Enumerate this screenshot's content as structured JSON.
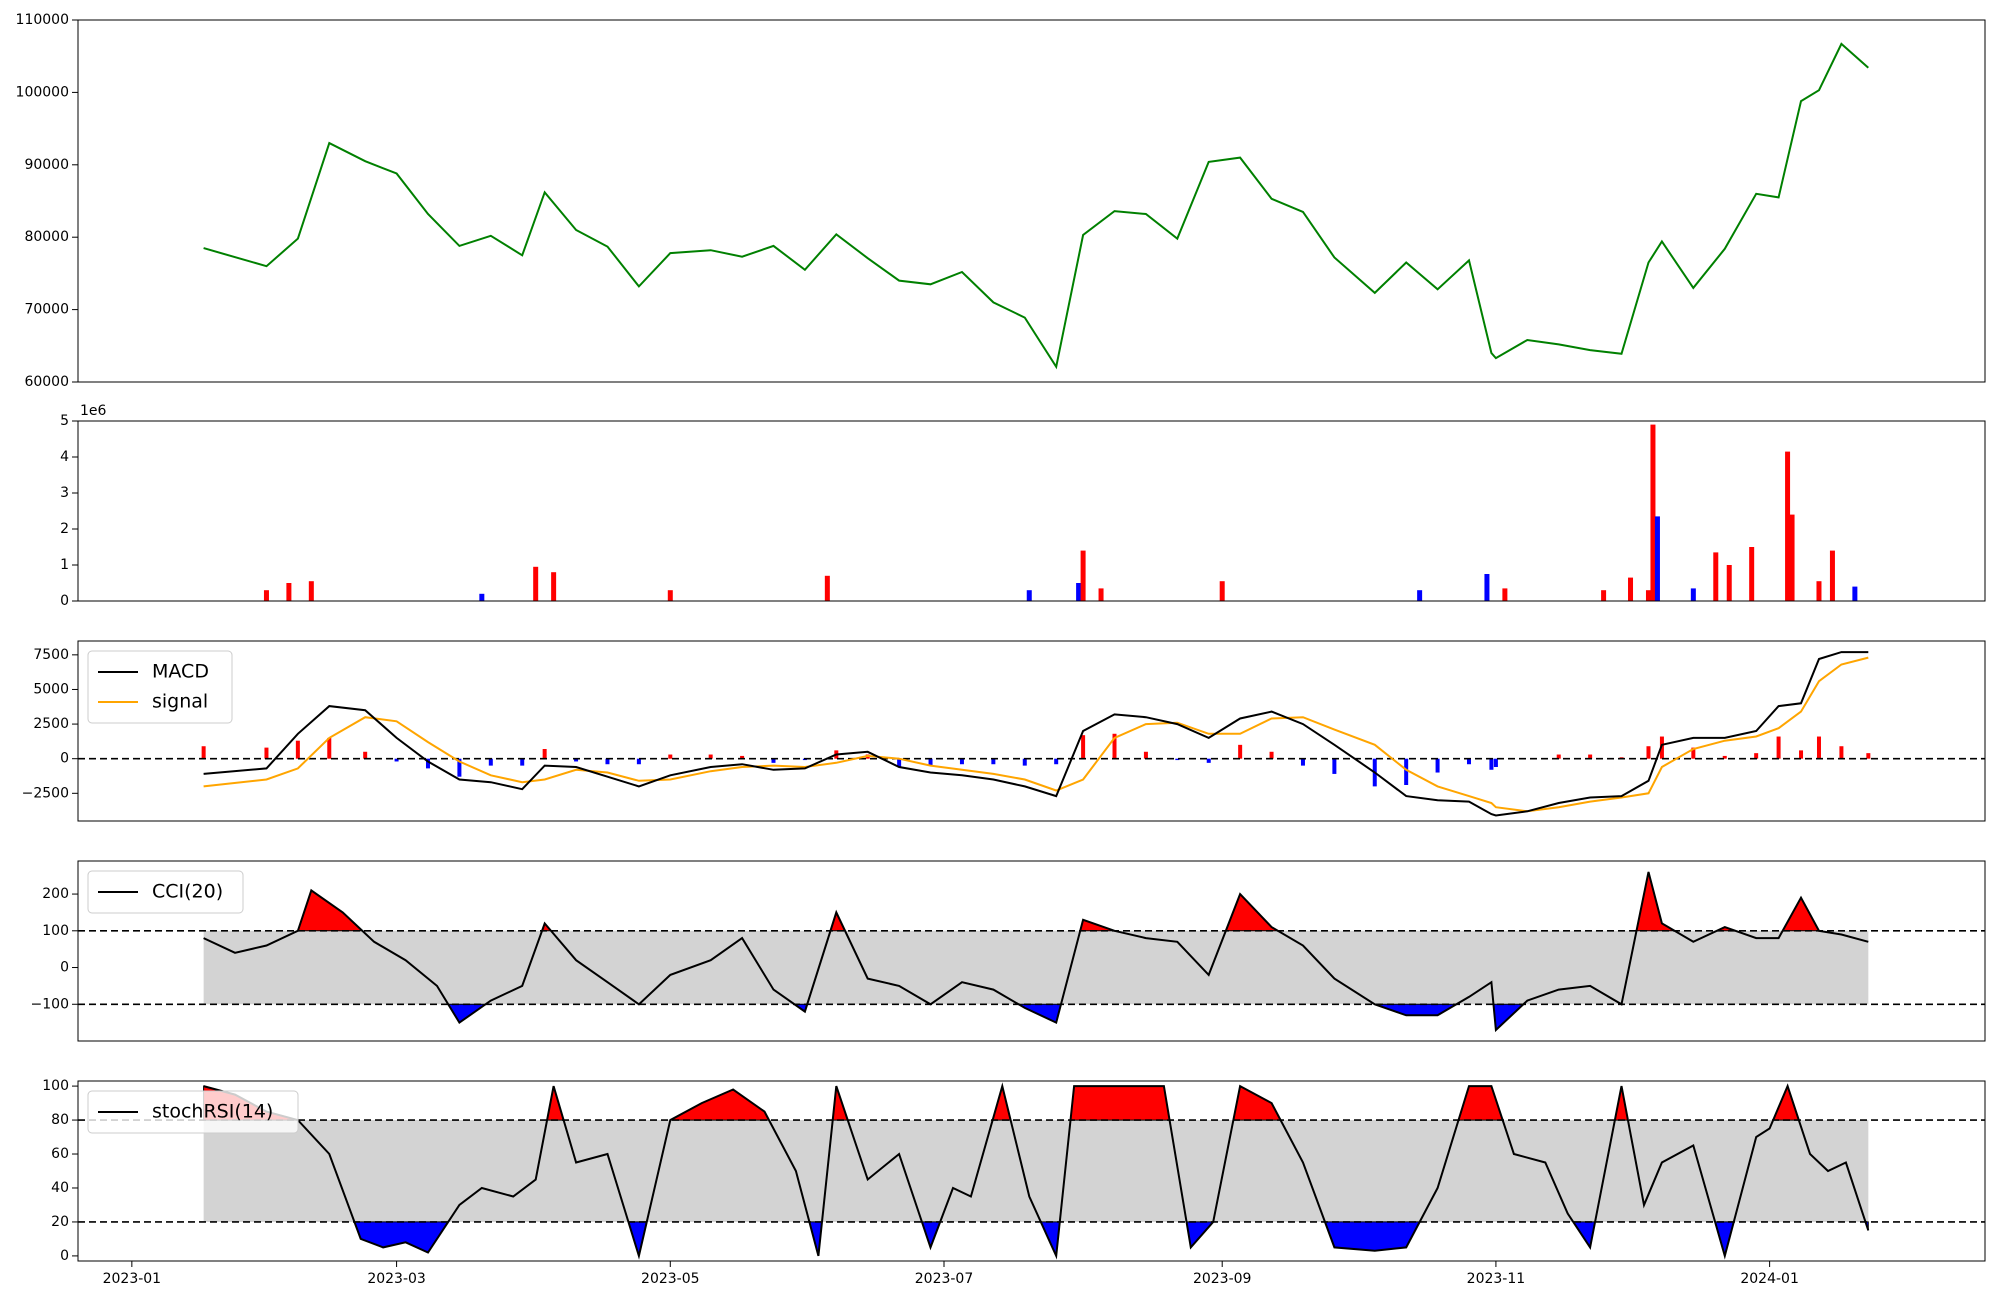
{
  "chart_data": [
    {
      "type": "line",
      "panel": "price",
      "ylim": [
        60000,
        110000
      ],
      "yticks": [
        "60000",
        "70000",
        "80000",
        "90000",
        "100000",
        "110000"
      ],
      "x": [
        "2023-01-17",
        "2023-01-31",
        "2023-02-07",
        "2023-02-14",
        "2023-02-22",
        "2023-03-01",
        "2023-03-08",
        "2023-03-15",
        "2023-03-22",
        "2023-03-29",
        "2023-04-03",
        "2023-04-10",
        "2023-04-17",
        "2023-04-24",
        "2023-05-01",
        "2023-05-10",
        "2023-05-17",
        "2023-05-24",
        "2023-05-31",
        "2023-06-07",
        "2023-06-14",
        "2023-06-21",
        "2023-06-28",
        "2023-07-05",
        "2023-07-12",
        "2023-07-19",
        "2023-07-26",
        "2023-08-01",
        "2023-08-08",
        "2023-08-15",
        "2023-08-22",
        "2023-08-29",
        "2023-09-05",
        "2023-09-12",
        "2023-09-19",
        "2023-09-26",
        "2023-10-05",
        "2023-10-12",
        "2023-10-19",
        "2023-10-26",
        "2023-10-31",
        "2023-11-01",
        "2023-11-08",
        "2023-11-15",
        "2023-11-22",
        "2023-11-29",
        "2023-12-05",
        "2023-12-08",
        "2023-12-15",
        "2023-12-22",
        "2023-12-29",
        "2024-01-03",
        "2024-01-08",
        "2024-01-12",
        "2024-01-17",
        "2024-01-23"
      ],
      "y": [
        78500,
        76000,
        79800,
        93000,
        90500,
        88800,
        83200,
        78800,
        80200,
        77500,
        86200,
        81000,
        78700,
        73200,
        77800,
        78200,
        77300,
        78800,
        75500,
        80400,
        77100,
        74000,
        73500,
        75200,
        71000,
        68900,
        62100,
        80300,
        83600,
        83200,
        79800,
        90400,
        91000,
        85300,
        83500,
        77200,
        72300,
        76500,
        72800,
        76800,
        64000,
        63300,
        65800,
        65200,
        64400,
        63900,
        76500,
        79400,
        73000,
        78400,
        86000,
        85500,
        98800,
        100300,
        106700,
        103400
      ]
    },
    {
      "type": "bar",
      "panel": "volume",
      "ylim": [
        0,
        5000000
      ],
      "yticks": [
        "0",
        "1",
        "2",
        "3",
        "4",
        "5"
      ],
      "offset_label": "1e6",
      "colors": {
        "up": "#ff0000",
        "down": "#0000ff"
      },
      "x": [
        "2023-01-31",
        "2023-02-05",
        "2023-02-10",
        "2023-03-20",
        "2023-04-01",
        "2023-04-05",
        "2023-05-01",
        "2023-06-05",
        "2023-07-20",
        "2023-07-31",
        "2023-08-01",
        "2023-08-05",
        "2023-09-01",
        "2023-10-15",
        "2023-10-30",
        "2023-11-03",
        "2023-11-25",
        "2023-12-01",
        "2023-12-05",
        "2023-12-06",
        "2023-12-07",
        "2023-12-15",
        "2023-12-20",
        "2023-12-23",
        "2023-12-28",
        "2024-01-05",
        "2024-01-06",
        "2024-01-12",
        "2024-01-15",
        "2024-01-20"
      ],
      "values": [
        300000,
        500000,
        550000,
        200000,
        950000,
        800000,
        300000,
        700000,
        300000,
        500000,
        1400000,
        350000,
        550000,
        300000,
        750000,
        350000,
        300000,
        650000,
        300000,
        4900000,
        2350000,
        350000,
        1350000,
        1000000,
        1500000,
        4150000,
        2400000,
        550000,
        1400000,
        400000
      ],
      "up": [
        true,
        true,
        true,
        false,
        true,
        true,
        true,
        true,
        false,
        false,
        true,
        true,
        true,
        false,
        false,
        true,
        true,
        true,
        true,
        true,
        false,
        false,
        true,
        true,
        true,
        true,
        true,
        true,
        true,
        false
      ]
    },
    {
      "type": "line",
      "panel": "macd",
      "ylim": [
        -4500,
        8500
      ],
      "yticks": [
        "−2500",
        "0",
        "2500",
        "5000",
        "7500"
      ],
      "legend": [
        "MACD",
        "signal"
      ],
      "colors": {
        "macd": "#000000",
        "signal": "#ffa500",
        "hist_pos": "#ff0000",
        "hist_neg": "#0000ff"
      },
      "x": [
        "2023-01-17",
        "2023-01-31",
        "2023-02-07",
        "2023-02-14",
        "2023-02-22",
        "2023-03-01",
        "2023-03-08",
        "2023-03-15",
        "2023-03-22",
        "2023-03-29",
        "2023-04-03",
        "2023-04-10",
        "2023-04-17",
        "2023-04-24",
        "2023-05-01",
        "2023-05-10",
        "2023-05-17",
        "2023-05-24",
        "2023-05-31",
        "2023-06-07",
        "2023-06-14",
        "2023-06-21",
        "2023-06-28",
        "2023-07-05",
        "2023-07-12",
        "2023-07-19",
        "2023-07-26",
        "2023-08-01",
        "2023-08-08",
        "2023-08-15",
        "2023-08-22",
        "2023-08-29",
        "2023-09-05",
        "2023-09-12",
        "2023-09-19",
        "2023-09-26",
        "2023-10-05",
        "2023-10-12",
        "2023-10-19",
        "2023-10-26",
        "2023-10-31",
        "2023-11-01",
        "2023-11-08",
        "2023-11-15",
        "2023-11-22",
        "2023-11-29",
        "2023-12-05",
        "2023-12-08",
        "2023-12-15",
        "2023-12-22",
        "2023-12-29",
        "2024-01-03",
        "2024-01-08",
        "2024-01-12",
        "2024-01-17",
        "2024-01-23"
      ],
      "macd": [
        -1100,
        -700,
        1800,
        3800,
        3500,
        1500,
        -200,
        -1500,
        -1700,
        -2200,
        -500,
        -600,
        -1300,
        -2000,
        -1200,
        -600,
        -400,
        -800,
        -700,
        300,
        500,
        -600,
        -1000,
        -1200,
        -1500,
        -2000,
        -2700,
        2000,
        3200,
        3000,
        2500,
        1500,
        2900,
        3400,
        2500,
        1000,
        -1000,
        -2700,
        -3000,
        -3100,
        -4000,
        -4100,
        -3800,
        -3200,
        -2800,
        -2700,
        -1600,
        1000,
        1500,
        1500,
        2000,
        3800,
        4000,
        7200,
        7700,
        7700
      ],
      "signal": [
        -2000,
        -1500,
        -700,
        1500,
        3000,
        2700,
        1200,
        -200,
        -1200,
        -1700,
        -1500,
        -800,
        -1000,
        -1600,
        -1500,
        -900,
        -600,
        -500,
        -600,
        -300,
        200,
        0,
        -500,
        -800,
        -1100,
        -1500,
        -2300,
        -1500,
        1500,
        2500,
        2600,
        1800,
        1800,
        2900,
        3000,
        2100,
        1000,
        -800,
        -2000,
        -2700,
        -3200,
        -3500,
        -3800,
        -3500,
        -3100,
        -2800,
        -2500,
        -600,
        700,
        1300,
        1600,
        2200,
        3400,
        5600,
        6800,
        7300
      ],
      "hist": [
        900,
        800,
        1300,
        1500,
        500,
        -200,
        -700,
        -1300,
        -500,
        -500,
        700,
        -200,
        -400,
        -400,
        300,
        300,
        200,
        -300,
        -100,
        600,
        300,
        -600,
        -500,
        -400,
        -400,
        -500,
        -400,
        1700,
        1800,
        500,
        -100,
        -300,
        1000,
        500,
        -500,
        -1100,
        -2000,
        -1900,
        -1000,
        -400,
        -800,
        -600,
        0,
        300,
        300,
        100,
        900,
        1600,
        800,
        200,
        400,
        1600,
        600,
        1600,
        900,
        400
      ]
    },
    {
      "type": "line",
      "panel": "cci",
      "ylim": [
        -200,
        290
      ],
      "yticks": [
        "−100",
        "0",
        "100",
        "200"
      ],
      "legend": [
        "CCI(20)"
      ],
      "thresholds": [
        100,
        -100
      ],
      "colors": {
        "line": "#000000",
        "over": "#ff0000",
        "under": "#0000ff",
        "band": "#d3d3d3"
      },
      "x": [
        "2023-01-17",
        "2023-01-24",
        "2023-01-31",
        "2023-02-07",
        "2023-02-10",
        "2023-02-17",
        "2023-02-24",
        "2023-03-03",
        "2023-03-10",
        "2023-03-15",
        "2023-03-22",
        "2023-03-29",
        "2023-04-03",
        "2023-04-10",
        "2023-04-17",
        "2023-04-24",
        "2023-05-01",
        "2023-05-10",
        "2023-05-17",
        "2023-05-24",
        "2023-05-31",
        "2023-06-07",
        "2023-06-14",
        "2023-06-21",
        "2023-06-28",
        "2023-07-05",
        "2023-07-12",
        "2023-07-19",
        "2023-07-26",
        "2023-08-01",
        "2023-08-08",
        "2023-08-15",
        "2023-08-22",
        "2023-08-29",
        "2023-09-05",
        "2023-09-12",
        "2023-09-19",
        "2023-09-26",
        "2023-10-05",
        "2023-10-12",
        "2023-10-19",
        "2023-10-26",
        "2023-10-31",
        "2023-11-01",
        "2023-11-08",
        "2023-11-15",
        "2023-11-22",
        "2023-11-29",
        "2023-12-05",
        "2023-12-08",
        "2023-12-15",
        "2023-12-22",
        "2023-12-29",
        "2024-01-03",
        "2024-01-08",
        "2024-01-12",
        "2024-01-17",
        "2024-01-23"
      ],
      "values": [
        80,
        40,
        60,
        100,
        210,
        150,
        70,
        20,
        -50,
        -150,
        -90,
        -50,
        120,
        20,
        -40,
        -100,
        -20,
        20,
        80,
        -60,
        -120,
        150,
        -30,
        -50,
        -100,
        -40,
        -60,
        -110,
        -150,
        130,
        100,
        80,
        70,
        -20,
        200,
        110,
        60,
        -30,
        -100,
        -130,
        -130,
        -80,
        -40,
        -170,
        -90,
        -60,
        -50,
        -100,
        260,
        120,
        70,
        110,
        80,
        80,
        190,
        100,
        90,
        70
      ]
    },
    {
      "type": "line",
      "panel": "stochrsi",
      "ylim": [
        -3,
        103
      ],
      "yticks": [
        "0",
        "20",
        "40",
        "60",
        "80",
        "100"
      ],
      "legend": [
        "stochRSI(14)"
      ],
      "thresholds": [
        80,
        20
      ],
      "colors": {
        "line": "#000000",
        "over": "#ff0000",
        "under": "#0000ff",
        "band": "#d3d3d3"
      },
      "xticks": [
        "2023-01",
        "2023-03",
        "2023-05",
        "2023-07",
        "2023-09",
        "2023-11",
        "2024-01"
      ],
      "x": [
        "2023-01-17",
        "2023-01-24",
        "2023-01-31",
        "2023-02-07",
        "2023-02-14",
        "2023-02-21",
        "2023-02-26",
        "2023-03-03",
        "2023-03-08",
        "2023-03-15",
        "2023-03-20",
        "2023-03-27",
        "2023-04-01",
        "2023-04-05",
        "2023-04-10",
        "2023-04-17",
        "2023-04-24",
        "2023-05-01",
        "2023-05-08",
        "2023-05-15",
        "2023-05-22",
        "2023-05-29",
        "2023-06-03",
        "2023-06-07",
        "2023-06-14",
        "2023-06-21",
        "2023-06-28",
        "2023-07-03",
        "2023-07-07",
        "2023-07-14",
        "2023-07-20",
        "2023-07-26",
        "2023-07-30",
        "2023-08-05",
        "2023-08-12",
        "2023-08-19",
        "2023-08-25",
        "2023-08-30",
        "2023-09-05",
        "2023-09-12",
        "2023-09-19",
        "2023-09-26",
        "2023-10-05",
        "2023-10-12",
        "2023-10-19",
        "2023-10-26",
        "2023-10-31",
        "2023-11-05",
        "2023-11-12",
        "2023-11-17",
        "2023-11-22",
        "2023-11-29",
        "2023-12-04",
        "2023-12-08",
        "2023-12-15",
        "2023-12-22",
        "2023-12-29",
        "2024-01-01",
        "2024-01-05",
        "2024-01-10",
        "2024-01-14",
        "2024-01-18",
        "2024-01-23"
      ],
      "values": [
        100,
        95,
        85,
        80,
        60,
        10,
        5,
        8,
        2,
        30,
        40,
        35,
        45,
        100,
        55,
        60,
        0,
        80,
        90,
        98,
        85,
        50,
        0,
        100,
        45,
        60,
        5,
        40,
        35,
        100,
        35,
        0,
        100,
        100,
        100,
        100,
        5,
        20,
        100,
        90,
        55,
        5,
        3,
        5,
        40,
        100,
        100,
        60,
        55,
        25,
        5,
        100,
        30,
        55,
        65,
        0,
        70,
        75,
        100,
        60,
        50,
        55,
        15
      ]
    }
  ]
}
